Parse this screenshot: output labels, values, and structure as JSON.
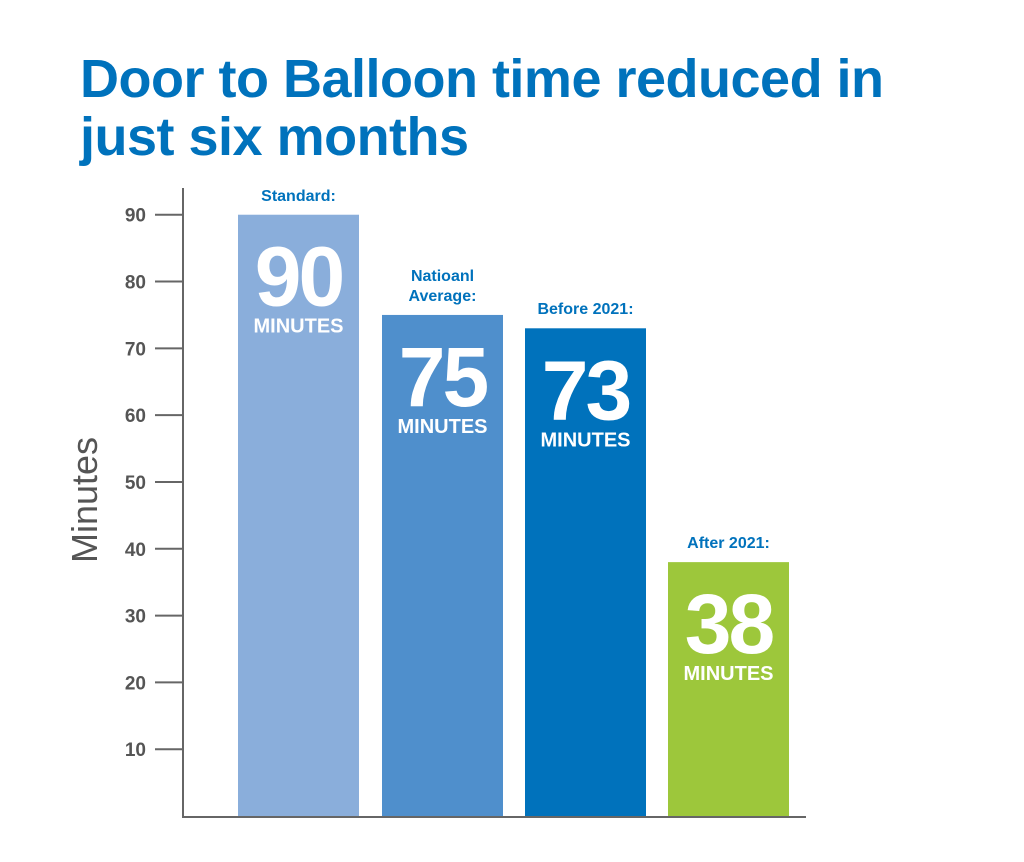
{
  "chart_data": {
    "type": "bar",
    "title": "Door to Balloon time reduced in just six months",
    "y_label": "Minutes",
    "categories": [
      "Standard:",
      "Natioanl Average:",
      "Before 2021:",
      "After 2021:"
    ],
    "values": [
      90,
      75,
      73,
      38
    ],
    "unit_label": "MINUTES",
    "colors": [
      "#8aaedb",
      "#4f8fcc",
      "#0072bc",
      "#9dc73b"
    ],
    "ylim": [
      0,
      94
    ],
    "yticks": [
      10,
      20,
      30,
      40,
      50,
      60,
      70,
      80,
      90
    ],
    "grid": false
  }
}
